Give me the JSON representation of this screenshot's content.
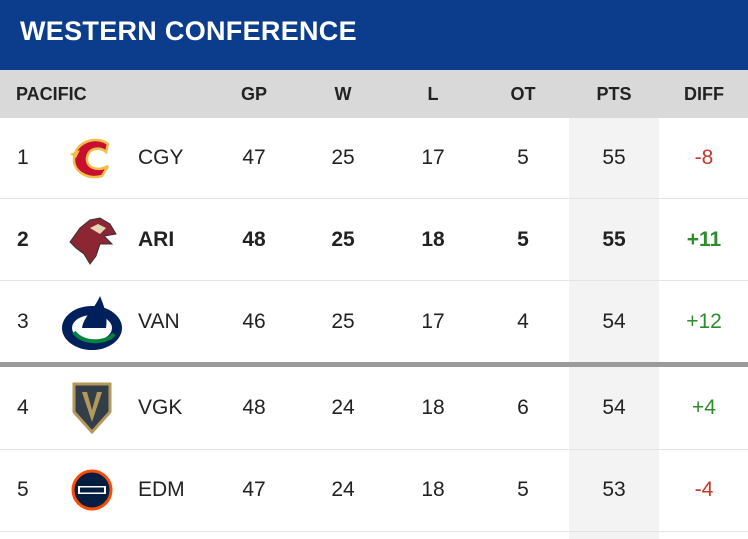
{
  "header": {
    "title": "WESTERN CONFERENCE"
  },
  "table": {
    "columns": [
      "PACIFIC",
      "GP",
      "W",
      "L",
      "OT",
      "PTS",
      "DIFF"
    ],
    "rows": [
      [
        "1",
        "CGY",
        "47",
        "25",
        "17",
        "5",
        "55",
        "-8"
      ],
      [
        "2",
        "ARI",
        "48",
        "25",
        "18",
        "5",
        "55",
        "+11"
      ],
      [
        "3",
        "VAN",
        "46",
        "25",
        "17",
        "4",
        "54",
        "+12"
      ],
      [
        "4",
        "VGK",
        "48",
        "24",
        "18",
        "6",
        "54",
        "+4"
      ],
      [
        "5",
        "EDM",
        "47",
        "24",
        "18",
        "5",
        "53",
        "-4"
      ]
    ]
  }
}
